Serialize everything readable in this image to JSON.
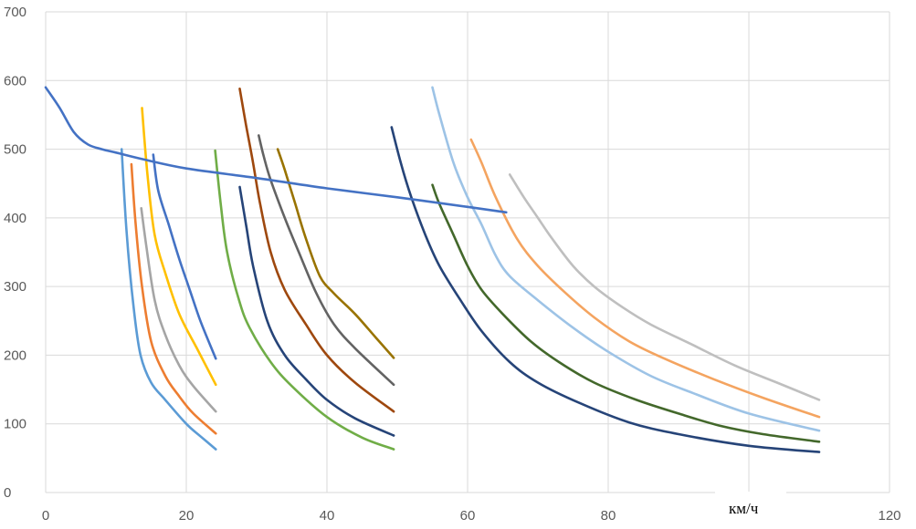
{
  "chart_data": {
    "type": "line",
    "title": "",
    "xlabel": "км/ч",
    "ylabel": "",
    "xlim": [
      0,
      120
    ],
    "ylim": [
      0,
      700
    ],
    "x_ticks": [
      "0",
      "20",
      "40",
      "60",
      "80",
      "100",
      "120"
    ],
    "y_ticks": [
      "0",
      "100",
      "200",
      "300",
      "400",
      "500",
      "600",
      "700"
    ],
    "grid": true,
    "legend": "none",
    "series": [
      {
        "color": "#5B9BD5",
        "points": [
          [
            10.8,
            500
          ],
          [
            11.5,
            380
          ],
          [
            12.5,
            270
          ],
          [
            13.5,
            200
          ],
          [
            15,
            160
          ],
          [
            17,
            135
          ],
          [
            20,
            100
          ],
          [
            22,
            82
          ],
          [
            24.2,
            63
          ]
        ]
      },
      {
        "color": "#ED7D31",
        "points": [
          [
            12.2,
            478
          ],
          [
            12.8,
            390
          ],
          [
            13.7,
            300
          ],
          [
            15,
            220
          ],
          [
            17,
            170
          ],
          [
            19,
            140
          ],
          [
            21,
            115
          ],
          [
            24.2,
            86
          ]
        ]
      },
      {
        "color": "#A5A5A5",
        "points": [
          [
            13.6,
            414
          ],
          [
            14.3,
            360
          ],
          [
            15.5,
            280
          ],
          [
            17,
            230
          ],
          [
            19,
            185
          ],
          [
            21,
            155
          ],
          [
            24.2,
            118
          ]
        ]
      },
      {
        "color": "#FFC000",
        "points": [
          [
            13.7,
            560
          ],
          [
            14.5,
            460
          ],
          [
            15.5,
            375
          ],
          [
            17,
            320
          ],
          [
            19,
            260
          ],
          [
            21.5,
            210
          ],
          [
            24.2,
            157
          ]
        ]
      },
      {
        "color": "#4472C4",
        "points": [
          [
            15.3,
            492
          ],
          [
            16,
            440
          ],
          [
            17.5,
            390
          ],
          [
            19,
            340
          ],
          [
            20.5,
            295
          ],
          [
            22,
            250
          ],
          [
            24.2,
            195
          ]
        ]
      },
      {
        "color": "#70AD47",
        "points": [
          [
            24.1,
            498
          ],
          [
            24.9,
            420
          ],
          [
            25.8,
            350
          ],
          [
            27.5,
            280
          ],
          [
            29,
            240
          ],
          [
            32,
            190
          ],
          [
            35,
            155
          ],
          [
            40,
            110
          ],
          [
            45,
            80
          ],
          [
            49.5,
            63
          ]
        ]
      },
      {
        "color": "#264478",
        "points": [
          [
            27.6,
            445
          ],
          [
            28.5,
            390
          ],
          [
            29.5,
            330
          ],
          [
            31.5,
            250
          ],
          [
            34,
            200
          ],
          [
            37,
            165
          ],
          [
            40,
            135
          ],
          [
            44,
            108
          ],
          [
            49.5,
            83
          ]
        ]
      },
      {
        "color": "#9E480E",
        "points": [
          [
            27.6,
            588
          ],
          [
            28.5,
            535
          ],
          [
            29.5,
            480
          ],
          [
            30.5,
            420
          ],
          [
            32,
            350
          ],
          [
            34,
            295
          ],
          [
            37,
            245
          ],
          [
            40,
            200
          ],
          [
            44,
            160
          ],
          [
            49.5,
            118
          ]
        ]
      },
      {
        "color": "#636363",
        "points": [
          [
            30.3,
            520
          ],
          [
            31,
            490
          ],
          [
            32,
            455
          ],
          [
            34,
            400
          ],
          [
            36,
            350
          ],
          [
            38.5,
            290
          ],
          [
            41,
            245
          ],
          [
            44,
            210
          ],
          [
            49.5,
            157
          ]
        ]
      },
      {
        "color": "#997300",
        "points": [
          [
            33,
            500
          ],
          [
            34,
            470
          ],
          [
            35.5,
            420
          ],
          [
            37,
            370
          ],
          [
            39,
            315
          ],
          [
            41,
            290
          ],
          [
            44,
            260
          ],
          [
            47,
            225
          ],
          [
            49.5,
            196
          ]
        ]
      },
      {
        "color": "#264478",
        "points": [
          [
            49.2,
            532
          ],
          [
            50.5,
            480
          ],
          [
            52,
            430
          ],
          [
            54,
            375
          ],
          [
            56,
            330
          ],
          [
            59,
            280
          ],
          [
            62,
            235
          ],
          [
            66,
            190
          ],
          [
            70,
            160
          ],
          [
            76,
            130
          ],
          [
            83,
            102
          ],
          [
            90,
            85
          ],
          [
            100,
            68
          ],
          [
            110,
            59
          ]
        ]
      },
      {
        "color": "#43682B",
        "points": [
          [
            55,
            448
          ],
          [
            56,
            420
          ],
          [
            58,
            375
          ],
          [
            60,
            330
          ],
          [
            62,
            295
          ],
          [
            65,
            260
          ],
          [
            69,
            220
          ],
          [
            73,
            190
          ],
          [
            78,
            160
          ],
          [
            84,
            135
          ],
          [
            90,
            115
          ],
          [
            96,
            97
          ],
          [
            102,
            85
          ],
          [
            110,
            74
          ]
        ]
      },
      {
        "color": "#9DC3E6",
        "points": [
          [
            55,
            590
          ],
          [
            56,
            550
          ],
          [
            58,
            480
          ],
          [
            60,
            430
          ],
          [
            62,
            390
          ],
          [
            64,
            345
          ],
          [
            66,
            315
          ],
          [
            70,
            280
          ],
          [
            75,
            240
          ],
          [
            80,
            205
          ],
          [
            86,
            170
          ],
          [
            92,
            145
          ],
          [
            100,
            115
          ],
          [
            110,
            90
          ]
        ]
      },
      {
        "color": "#F4A460",
        "points": [
          [
            60.5,
            514
          ],
          [
            62,
            480
          ],
          [
            64,
            430
          ],
          [
            67,
            370
          ],
          [
            70,
            330
          ],
          [
            74,
            290
          ],
          [
            78,
            255
          ],
          [
            83,
            220
          ],
          [
            88,
            195
          ],
          [
            95,
            165
          ],
          [
            102,
            138
          ],
          [
            110,
            110
          ]
        ]
      },
      {
        "color": "#BFBFBF",
        "points": [
          [
            66,
            463
          ],
          [
            68,
            430
          ],
          [
            70,
            400
          ],
          [
            72,
            370
          ],
          [
            75,
            330
          ],
          [
            78,
            300
          ],
          [
            82,
            270
          ],
          [
            86,
            245
          ],
          [
            92,
            215
          ],
          [
            98,
            185
          ],
          [
            104,
            160
          ],
          [
            110,
            135
          ]
        ]
      },
      {
        "color": "#4472C4",
        "points": [
          [
            0,
            590
          ],
          [
            2,
            560
          ],
          [
            4,
            525
          ],
          [
            6,
            507
          ],
          [
            8,
            500
          ],
          [
            10,
            495
          ],
          [
            14,
            485
          ],
          [
            20,
            472
          ],
          [
            30,
            458
          ],
          [
            40,
            443
          ],
          [
            50,
            430
          ],
          [
            60,
            416
          ],
          [
            65.5,
            408
          ]
        ]
      }
    ]
  }
}
